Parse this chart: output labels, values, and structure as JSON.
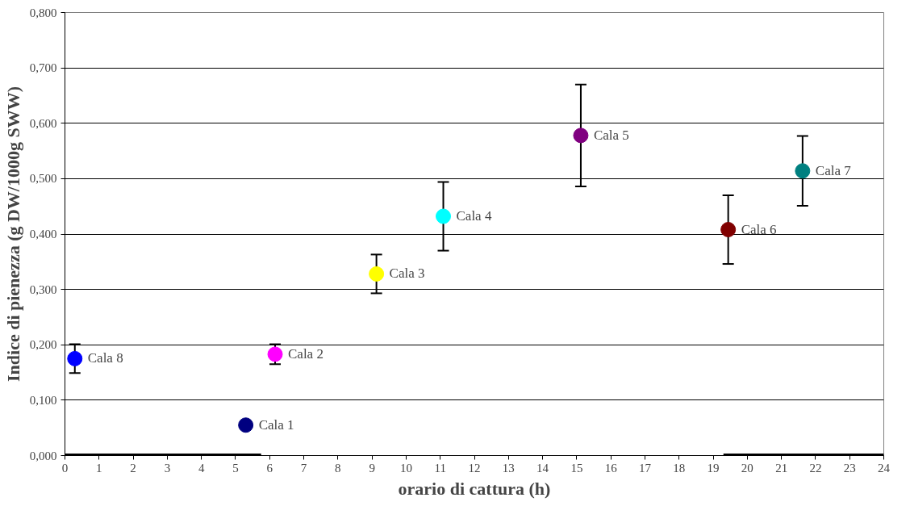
{
  "chart_data": {
    "type": "scatter",
    "xlabel": "orario di cattura (h)",
    "ylabel": "Indice di pienezza (g DW/1000g SWW)",
    "xlim": [
      0,
      24
    ],
    "xticks": [
      0,
      1,
      2,
      3,
      4,
      5,
      6,
      7,
      8,
      9,
      10,
      11,
      12,
      13,
      14,
      15,
      16,
      17,
      18,
      19,
      20,
      21,
      22,
      23,
      24
    ],
    "ylim": [
      0,
      0.8
    ],
    "yticks": [
      {
        "value": 0,
        "label": "0,000"
      },
      {
        "value": 0.1,
        "label": "0,100"
      },
      {
        "value": 0.2,
        "label": "0,200"
      },
      {
        "value": 0.3,
        "label": "0,300"
      },
      {
        "value": 0.4,
        "label": "0,400"
      },
      {
        "value": 0.5,
        "label": "0,500"
      },
      {
        "value": 0.6,
        "label": "0,600"
      },
      {
        "value": 0.7,
        "label": "0,700"
      },
      {
        "value": 0.8,
        "label": "0,800"
      }
    ],
    "grid": "y",
    "marker": "circle",
    "series": [
      {
        "type": "line",
        "marker": "none",
        "color": "#000000",
        "x": [
          0,
          5.75
        ],
        "values": [
          0,
          0
        ]
      },
      {
        "type": "line",
        "marker": "none",
        "color": "#000000",
        "x": [
          19.3,
          24
        ],
        "values": [
          0,
          0
        ]
      },
      {
        "name": "Cala 1",
        "color": "#000080",
        "x": [
          5.3
        ],
        "values": [
          0.055
        ],
        "errors": [
          null
        ]
      },
      {
        "name": "Cala 2",
        "color": "#ff00ff",
        "x": [
          6.16
        ],
        "values": [
          0.183
        ],
        "errors": [
          0.018
        ]
      },
      {
        "name": "Cala 3",
        "color": "#ffff00",
        "x": [
          9.13
        ],
        "values": [
          0.328
        ],
        "errors": [
          0.035
        ]
      },
      {
        "name": "Cala 4",
        "color": "#00ffff",
        "x": [
          11.09
        ],
        "values": [
          0.432
        ],
        "errors": [
          0.062
        ]
      },
      {
        "name": "Cala 5",
        "color": "#800080",
        "x": [
          15.12
        ],
        "values": [
          0.578
        ],
        "errors": [
          0.092
        ]
      },
      {
        "name": "Cala 6",
        "color": "#800000",
        "x": [
          19.44
        ],
        "values": [
          0.408
        ],
        "errors": [
          0.062
        ]
      },
      {
        "name": "Cala 7",
        "color": "#008080",
        "x": [
          21.62
        ],
        "values": [
          0.514
        ],
        "errors": [
          0.063
        ]
      },
      {
        "name": "Cala 8",
        "color": "#0000ff",
        "x": [
          0.29
        ],
        "values": [
          0.175
        ],
        "errors": [
          0.026
        ]
      }
    ]
  }
}
